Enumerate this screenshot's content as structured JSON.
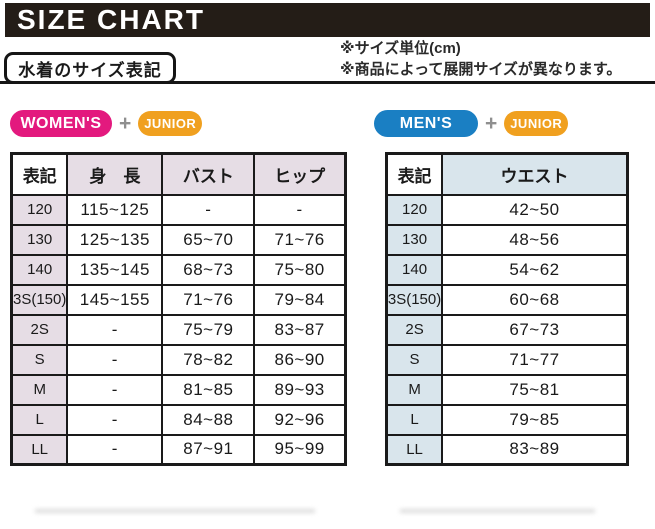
{
  "title": "SIZE CHART",
  "section_label": "水着のサイズ表記",
  "notes": {
    "unit": "※サイズ単位(cm)",
    "availability": "※商品によって展開サイズが異なります。"
  },
  "badges": {
    "womens_group": {
      "primary": "WOMEN'S",
      "plus": "+",
      "secondary": "JUNIOR"
    },
    "mens_group": {
      "primary": "MEN'S",
      "plus": "+",
      "secondary": "JUNIOR"
    }
  },
  "colors": {
    "title_bar_bg": "#241d17",
    "womens_badge": "#e3197e",
    "mens_badge": "#1a7fc3",
    "junior_badge": "#f0a01f",
    "plus_sign": "#8f8f8f",
    "womens_header_bg": "#e6dde5",
    "mens_header_bg": "#d9e5ec",
    "table_border": "#1a1a1a"
  },
  "tables": {
    "womens": {
      "headers": [
        "表記",
        "身　長",
        "バスト",
        "ヒップ"
      ],
      "rows": [
        [
          "120",
          "115~125",
          "-",
          "-"
        ],
        [
          "130",
          "125~135",
          "65~70",
          "71~76"
        ],
        [
          "140",
          "135~145",
          "68~73",
          "75~80"
        ],
        [
          "3S(150)",
          "145~155",
          "71~76",
          "79~84"
        ],
        [
          "2S",
          "-",
          "75~79",
          "83~87"
        ],
        [
          "S",
          "-",
          "78~82",
          "86~90"
        ],
        [
          "M",
          "-",
          "81~85",
          "89~93"
        ],
        [
          "L",
          "-",
          "84~88",
          "92~96"
        ],
        [
          "LL",
          "-",
          "87~91",
          "95~99"
        ]
      ]
    },
    "mens": {
      "headers": [
        "表記",
        "ウエスト"
      ],
      "rows": [
        [
          "120",
          "42~50"
        ],
        [
          "130",
          "48~56"
        ],
        [
          "140",
          "54~62"
        ],
        [
          "3S(150)",
          "60~68"
        ],
        [
          "2S",
          "67~73"
        ],
        [
          "S",
          "71~77"
        ],
        [
          "M",
          "75~81"
        ],
        [
          "L",
          "79~85"
        ],
        [
          "LL",
          "83~89"
        ]
      ]
    }
  }
}
